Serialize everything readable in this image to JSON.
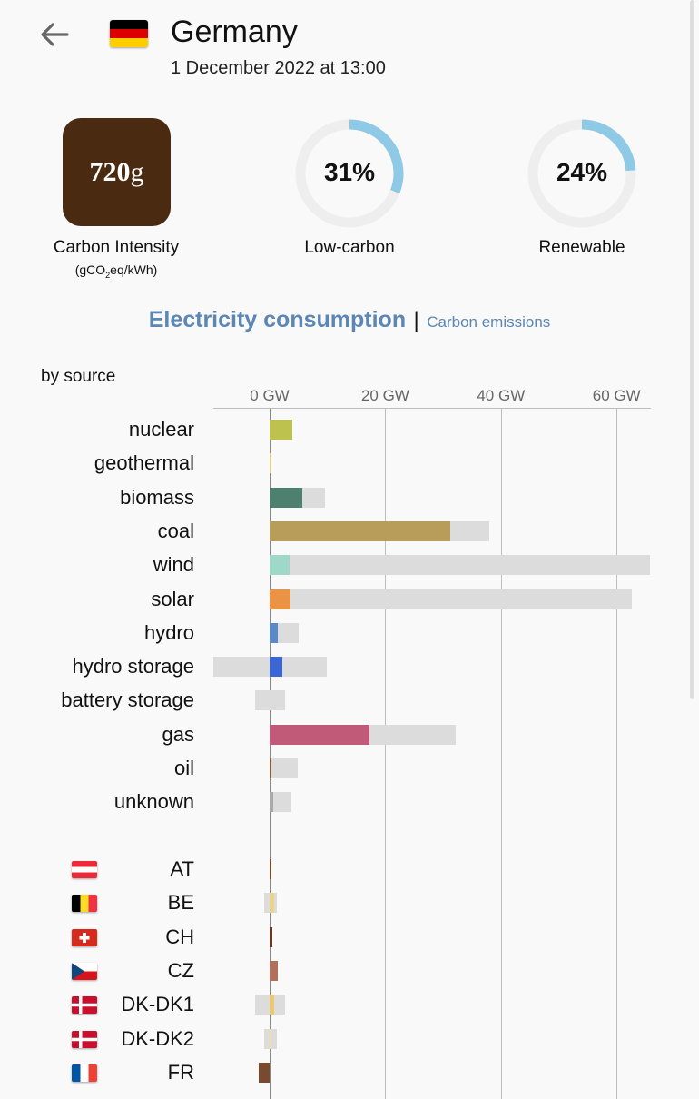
{
  "header": {
    "country": "Germany",
    "datetime": "1 December 2022 at 13:00",
    "back_icon": "arrow-left-icon",
    "flag_colors": [
      "#000000",
      "#dd0000",
      "#ffce00"
    ]
  },
  "carbon_intensity": {
    "value": "720",
    "unit": "g",
    "label": "Carbon Intensity",
    "units_pre": "(gCO",
    "units_sub": "2",
    "units_post": "eq/kWh)",
    "box_color": "#4b2a12"
  },
  "low_carbon": {
    "value": "31%",
    "fraction": 0.31,
    "label": "Low-carbon"
  },
  "renewable": {
    "value": "24%",
    "fraction": 0.24,
    "label": "Renewable"
  },
  "tabs": {
    "active": "Electricity consumption",
    "separator": "|",
    "other": "Carbon emissions"
  },
  "section_label": "by source",
  "colors": {
    "accent": "#5b86b5",
    "gauge_fill": "#8ecae6",
    "gauge_track": "#eeeeee",
    "bar_background": "#dcdcdc"
  },
  "chart_data": {
    "type": "bar",
    "orientation": "horizontal",
    "unit": "GW",
    "xlim": [
      -9.8,
      65.8
    ],
    "ticks": [
      "0 GW",
      "20 GW",
      "40 GW",
      "60 GW"
    ],
    "tick_values": [
      0,
      20,
      40,
      60
    ],
    "grid": true,
    "sources": [
      {
        "name": "nuclear",
        "value": 4.0,
        "cap_min": 0,
        "cap_max": 4.0,
        "color": "#bdc24e"
      },
      {
        "name": "geothermal",
        "value": 0.05,
        "cap_min": 0,
        "cap_max": 0.05,
        "color": "#ddd08a"
      },
      {
        "name": "biomass",
        "value": 5.6,
        "cap_min": 0,
        "cap_max": 9.6,
        "color": "#4e8070"
      },
      {
        "name": "coal",
        "value": 31.2,
        "cap_min": 0,
        "cap_max": 38.0,
        "color": "#b89c5a"
      },
      {
        "name": "wind",
        "value": 3.4,
        "cap_min": 0,
        "cap_max": 65.8,
        "color": "#9ed8c8"
      },
      {
        "name": "solar",
        "value": 3.6,
        "cap_min": 0,
        "cap_max": 62.6,
        "color": "#ea9344"
      },
      {
        "name": "hydro",
        "value": 1.4,
        "cap_min": 0,
        "cap_max": 5.1,
        "color": "#5a88c8"
      },
      {
        "name": "hydro storage",
        "value": 2.2,
        "cap_min": -9.8,
        "cap_max": 9.9,
        "color": "#3c66d4"
      },
      {
        "name": "battery storage",
        "value": 0,
        "cap_min": -2.5,
        "cap_max": 2.6,
        "color": "#a0a0a0"
      },
      {
        "name": "gas",
        "value": 17.2,
        "cap_min": 0,
        "cap_max": 32.2,
        "color": "#c05a78"
      },
      {
        "name": "oil",
        "value": 0.3,
        "cap_min": 0,
        "cap_max": 4.8,
        "color": "#8a5a3c"
      },
      {
        "name": "unknown",
        "value": 0.6,
        "cap_min": 0,
        "cap_max": 3.8,
        "color": "#aaaaaa"
      }
    ],
    "exchanges": [
      {
        "name": "AT",
        "value": 0.3,
        "cap_min": 0,
        "cap_max": 0.3,
        "color": "#7a4a2a"
      },
      {
        "name": "BE",
        "value": 0.8,
        "cap_min": -0.9,
        "cap_max": 1.2,
        "color": "#ead38a"
      },
      {
        "name": "CH",
        "value": 0.4,
        "cap_min": 0,
        "cap_max": 0.4,
        "color": "#6a3a22"
      },
      {
        "name": "CZ",
        "value": 1.4,
        "cap_min": 0,
        "cap_max": 1.4,
        "color": "#b0705a"
      },
      {
        "name": "DK-DK1",
        "value": 0.8,
        "cap_min": -2.5,
        "cap_max": 2.6,
        "color": "#ecc870"
      },
      {
        "name": "DK-DK2",
        "value": 0.3,
        "cap_min": -0.9,
        "cap_max": 1.2,
        "color": "#f0e0a8"
      },
      {
        "name": "FR",
        "value": -1.9,
        "cap_min": -1.9,
        "cap_max": 0,
        "color": "#7a4a2e"
      }
    ]
  }
}
